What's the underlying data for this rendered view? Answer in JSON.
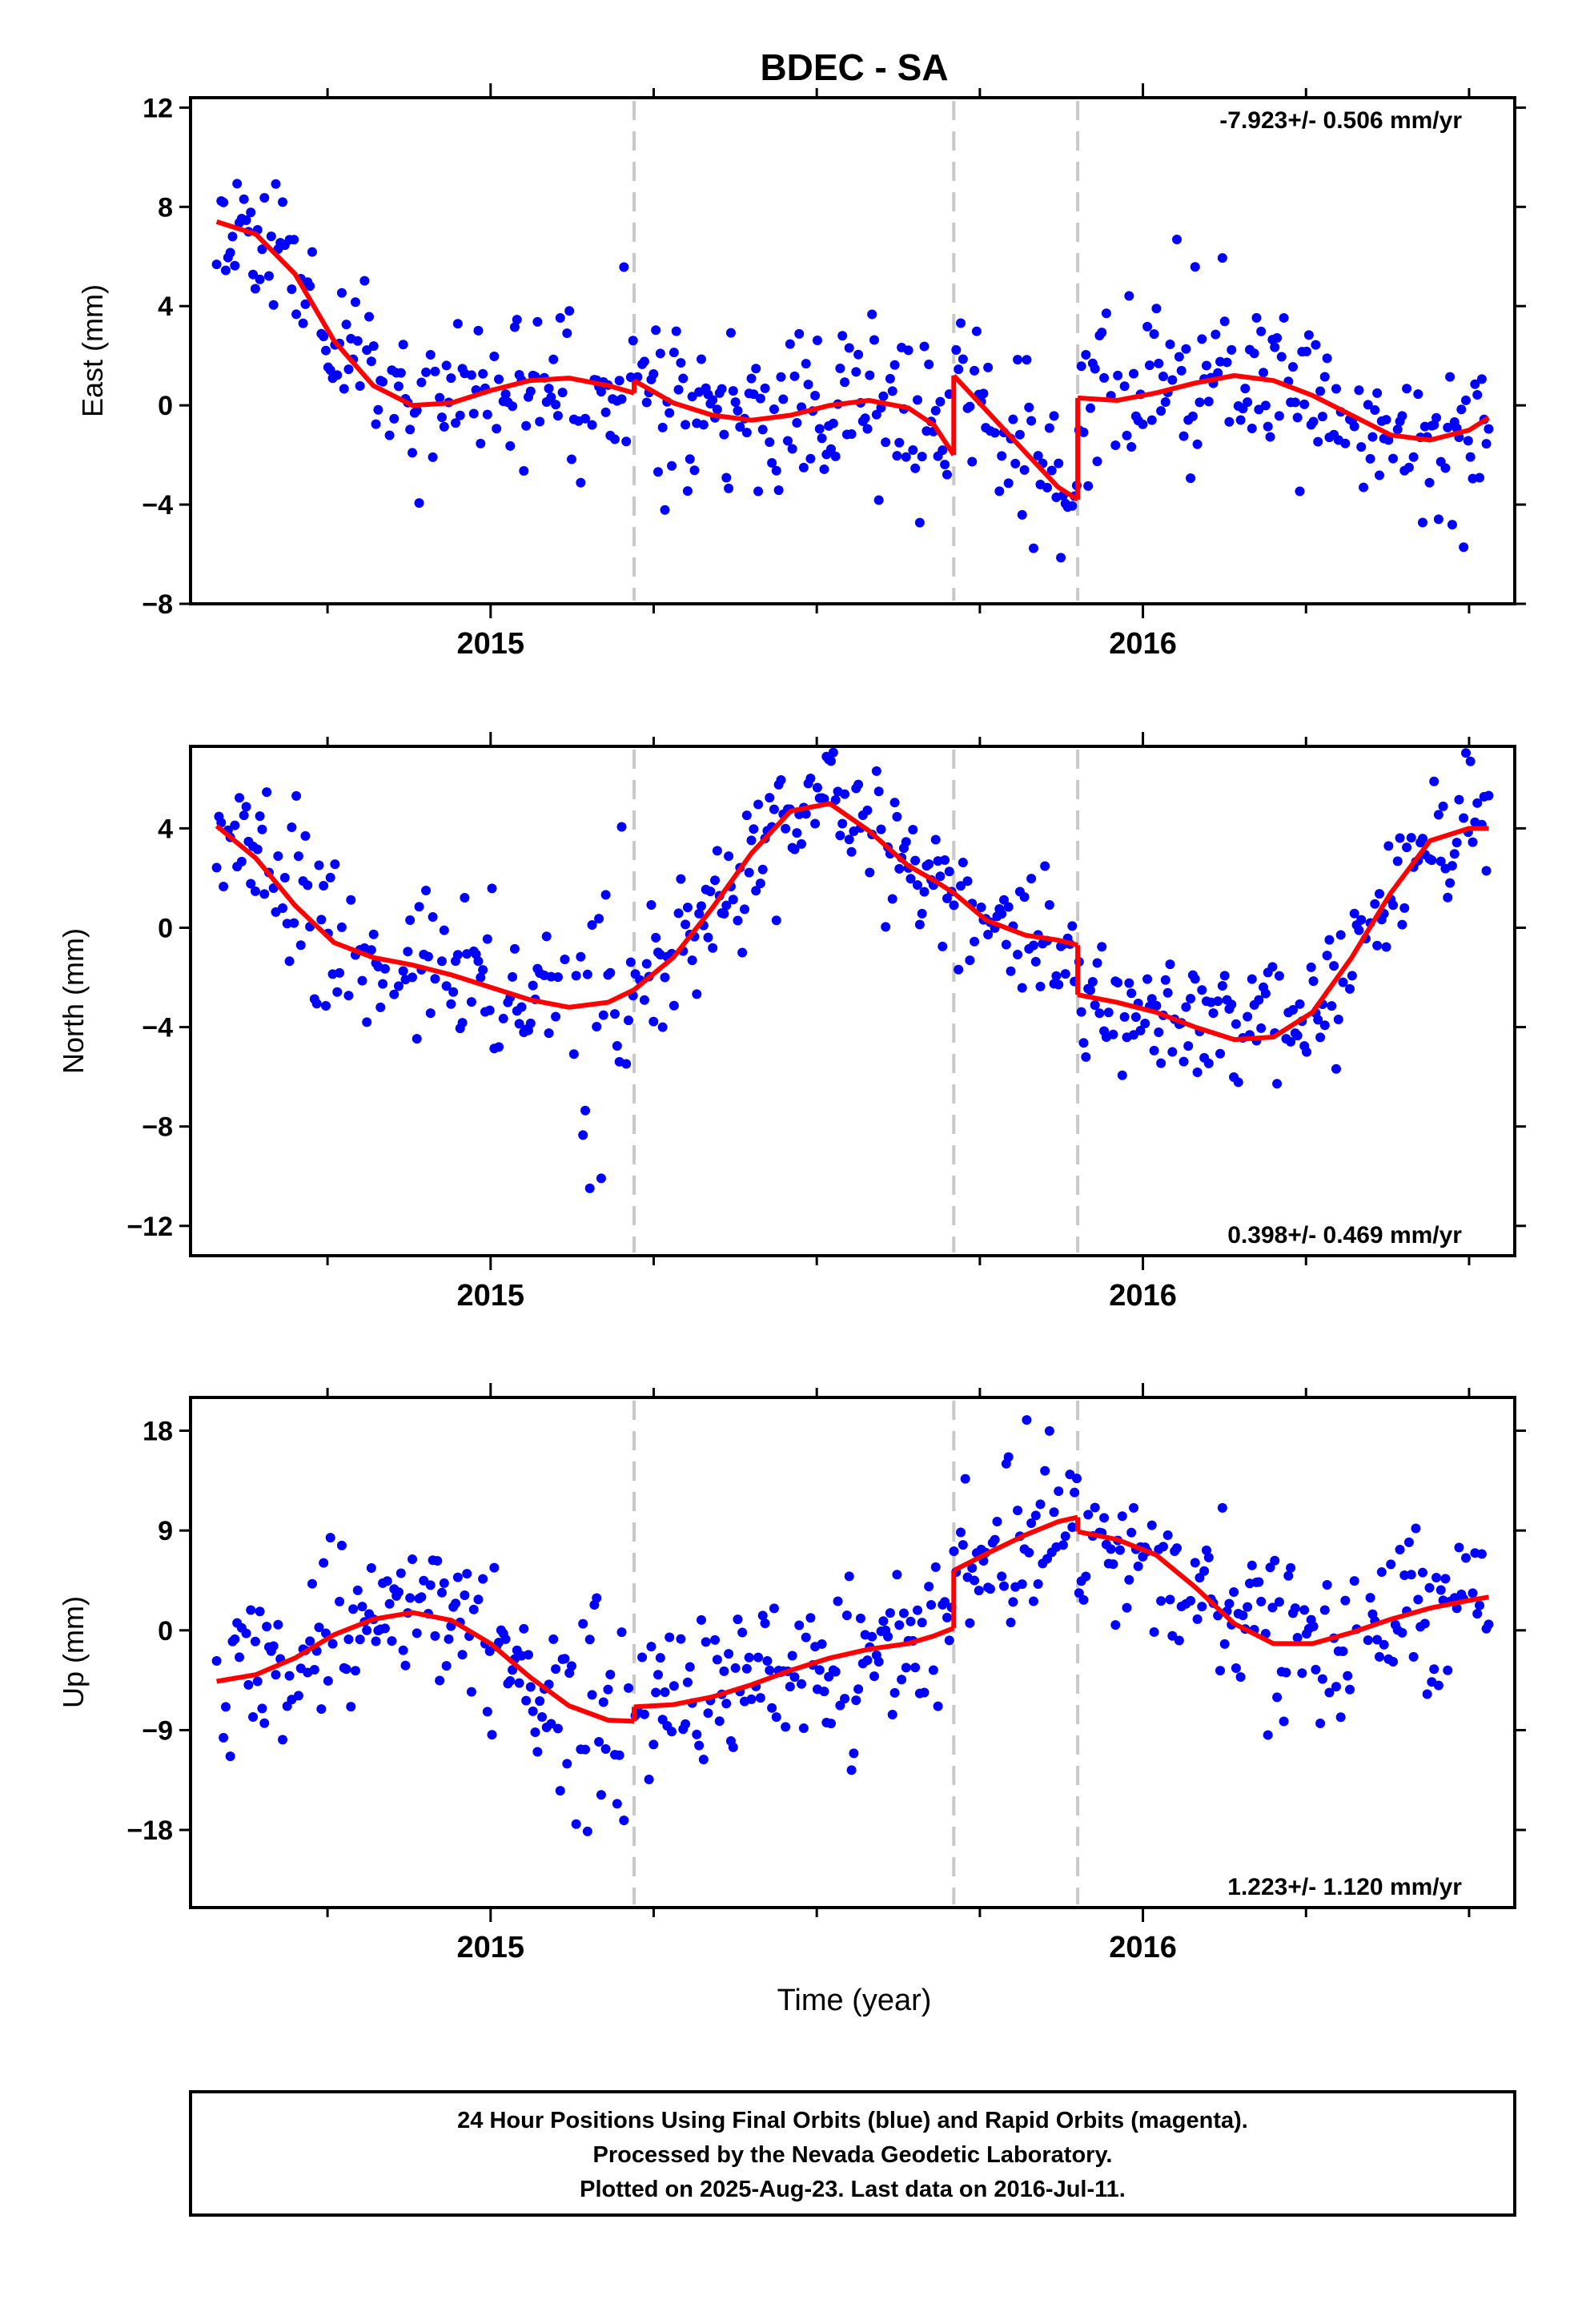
{
  "title": "BDEC - SA",
  "x_axis_label": "Time (year)",
  "footer": [
    "24 Hour Positions Using Final Orbits (blue) and Rapid Orbits (magenta).",
    "Processed by the Nevada Geodetic Laboratory.",
    "Plotted on 2025-Aug-23. Last data on 2016-Jul-11."
  ],
  "colors": {
    "points": "#0000ff",
    "model": "#ff0000",
    "steps": "#c8c8c8",
    "frame": "#000000"
  },
  "chart_data": [
    {
      "type": "scatter",
      "ylabel": "East (mm)",
      "rate_text": "-7.923+/- 0.506 mm/yr",
      "xlim": [
        2014.54,
        2016.57
      ],
      "ylim": [
        -8,
        12.4
      ],
      "yticks": [
        -8,
        -4,
        0,
        4,
        8,
        12
      ],
      "xticks": [
        2015,
        2016
      ],
      "step_epochs": [
        2015.22,
        2015.71,
        2015.9
      ],
      "model_segments": [
        {
          "x": [
            2014.58,
            2014.64,
            2014.7,
            2014.76,
            2014.82,
            2014.88,
            2014.94,
            2015.0,
            2015.06,
            2015.12,
            2015.18,
            2015.22
          ],
          "y": [
            7.4,
            6.9,
            5.3,
            2.6,
            0.8,
            0.0,
            0.1,
            0.6,
            1.0,
            1.1,
            0.8,
            0.5
          ]
        },
        {
          "x": [
            2015.22,
            2015.28,
            2015.34,
            2015.4,
            2015.46,
            2015.52,
            2015.58,
            2015.64,
            2015.68,
            2015.71
          ],
          "y": [
            1.0,
            0.1,
            -0.4,
            -0.6,
            -0.4,
            0.0,
            0.2,
            -0.1,
            -0.8,
            -2.0
          ]
        },
        {
          "x": [
            2015.71,
            2015.76,
            2015.82,
            2015.87,
            2015.9
          ],
          "y": [
            1.2,
            -0.2,
            -1.9,
            -3.3,
            -3.8
          ]
        },
        {
          "x": [
            2015.9,
            2015.96,
            2016.02,
            2016.08,
            2016.14,
            2016.2,
            2016.26,
            2016.32,
            2016.38,
            2016.44,
            2016.5,
            2016.53
          ],
          "y": [
            0.3,
            0.2,
            0.5,
            0.9,
            1.2,
            1.0,
            0.4,
            -0.4,
            -1.2,
            -1.4,
            -1.0,
            -0.5
          ]
        }
      ],
      "points": {
        "x_start": 2014.58,
        "x_end": 2016.53,
        "count": 560,
        "seed": 11,
        "scatter_sd": 1.6,
        "bursts": [
          [
            2015.12,
            2015.22,
            2.0
          ],
          [
            2014.58,
            2014.66,
            1.8
          ]
        ]
      }
    },
    {
      "type": "scatter",
      "ylabel": "North (mm)",
      "rate_text": "0.398+/- 0.469 mm/yr",
      "xlim": [
        2014.54,
        2016.57
      ],
      "ylim": [
        -13.2,
        7.3
      ],
      "yticks": [
        -12,
        -8,
        -4,
        0,
        4
      ],
      "xticks": [
        2015,
        2016
      ],
      "step_epochs": [
        2015.22,
        2015.71,
        2015.9
      ],
      "model_segments": [
        {
          "x": [
            2014.58,
            2014.64,
            2014.7,
            2014.76,
            2014.82,
            2014.88,
            2014.94,
            2015.0,
            2015.06,
            2015.12,
            2015.18,
            2015.22
          ],
          "y": [
            4.1,
            2.8,
            0.9,
            -0.6,
            -1.2,
            -1.5,
            -1.9,
            -2.4,
            -2.9,
            -3.2,
            -3.0,
            -2.5
          ]
        },
        {
          "x": [
            2015.22,
            2015.28,
            2015.34,
            2015.4,
            2015.46,
            2015.52,
            2015.58,
            2015.64,
            2015.68,
            2015.71
          ],
          "y": [
            -2.5,
            -1.2,
            0.8,
            3.0,
            4.7,
            5.0,
            3.9,
            2.5,
            1.9,
            1.4
          ]
        },
        {
          "x": [
            2015.71,
            2015.76,
            2015.82,
            2015.87,
            2015.9
          ],
          "y": [
            1.4,
            0.3,
            -0.3,
            -0.5,
            -0.7
          ]
        },
        {
          "x": [
            2015.9,
            2015.96,
            2016.02,
            2016.08,
            2016.14,
            2016.2,
            2016.26,
            2016.32,
            2016.38,
            2016.44,
            2016.5,
            2016.53
          ],
          "y": [
            -2.7,
            -3.0,
            -3.4,
            -4.0,
            -4.5,
            -4.4,
            -3.4,
            -1.2,
            1.4,
            3.5,
            4.0,
            4.0
          ]
        }
      ],
      "points": {
        "x_start": 2014.58,
        "x_end": 2016.53,
        "count": 560,
        "seed": 23,
        "scatter_sd": 1.3,
        "bursts": [
          [
            2015.1,
            2015.22,
            3.6
          ],
          [
            2014.7,
            2014.78,
            2.4
          ]
        ]
      }
    },
    {
      "type": "scatter",
      "ylabel": "Up (mm)",
      "rate_text": "1.223+/- 1.120 mm/yr",
      "xlim": [
        2014.54,
        2016.57
      ],
      "ylim": [
        -25,
        21
      ],
      "yticks": [
        -18,
        -9,
        0,
        9,
        18
      ],
      "xticks": [
        2015,
        2016
      ],
      "step_epochs": [
        2015.22,
        2015.71,
        2015.9
      ],
      "model_segments": [
        {
          "x": [
            2014.58,
            2014.64,
            2014.7,
            2014.76,
            2014.82,
            2014.88,
            2014.94,
            2015.0,
            2015.06,
            2015.12,
            2015.18,
            2015.22
          ],
          "y": [
            -4.6,
            -4.0,
            -2.5,
            -0.4,
            1.0,
            1.6,
            0.9,
            -1.2,
            -4.2,
            -6.8,
            -8.1,
            -8.2
          ]
        },
        {
          "x": [
            2015.22,
            2015.28,
            2015.34,
            2015.4,
            2015.46,
            2015.52,
            2015.58,
            2015.64,
            2015.68,
            2015.71
          ],
          "y": [
            -6.9,
            -6.7,
            -6.0,
            -4.9,
            -3.6,
            -2.5,
            -1.7,
            -1.2,
            -0.5,
            0.2
          ]
        },
        {
          "x": [
            2015.71,
            2015.76,
            2015.82,
            2015.87,
            2015.9
          ],
          "y": [
            5.4,
            6.9,
            8.6,
            9.8,
            10.2
          ]
        },
        {
          "x": [
            2015.9,
            2015.96,
            2016.02,
            2016.08,
            2016.14,
            2016.2,
            2016.26,
            2016.32,
            2016.38,
            2016.44,
            2016.5,
            2016.53
          ],
          "y": [
            8.9,
            8.2,
            6.8,
            3.9,
            0.6,
            -1.2,
            -1.2,
            -0.2,
            1.0,
            2.0,
            2.7,
            3.0
          ]
        }
      ],
      "points": {
        "x_start": 2014.58,
        "x_end": 2016.53,
        "count": 560,
        "seed": 37,
        "scatter_sd": 3.4,
        "bursts": [
          [
            2015.08,
            2015.22,
            5.0
          ],
          [
            2014.78,
            2014.9,
            3.0
          ]
        ]
      }
    }
  ]
}
